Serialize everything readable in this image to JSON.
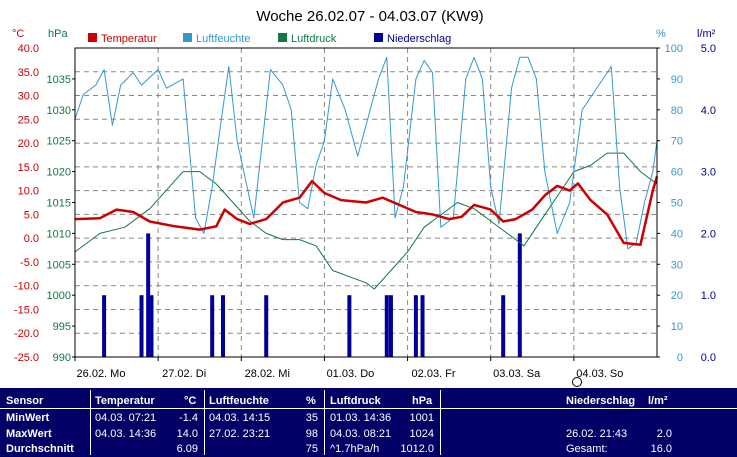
{
  "chart_data": {
    "type": "line",
    "title": "Woche 26.02.07 - 04.03.07 (KW9)",
    "unit_temp": "°C",
    "unit_press": "hPa",
    "unit_hum": "%",
    "unit_rain": "l/m²",
    "legend": [
      "Temperatur",
      "Luftfeuchte",
      "Luftdruck",
      "Niederschlag"
    ],
    "colors": {
      "temperatur": "#cc0000",
      "luftfeuchte": "#3399cc",
      "luftdruck": "#117744",
      "niederschlag": "#000099",
      "temp_axis": "#cc0000",
      "press_axis": "#117744",
      "hum_axis": "#3399cc",
      "rain_axis": "#000099"
    },
    "x_range": [
      0,
      7
    ],
    "day_labels": [
      "26.02.  Mo",
      "27.02.  Di",
      "28.02.  Mi",
      "01.03.  Do",
      "02.03.  Fr",
      "03.03.  Sa",
      "04.03.  So"
    ],
    "temp_ticks": [
      "40.0",
      "35.0",
      "30.0",
      "25.0",
      "20.0",
      "15.0",
      "10.0",
      "5.0",
      "0.0",
      "-5.0",
      "-10.0",
      "-15.0",
      "-20.0",
      "-25.0"
    ],
    "press_ticks": [
      "1035",
      "1030",
      "1025",
      "1020",
      "1015",
      "1010",
      "1005",
      "1000",
      "995",
      "990"
    ],
    "hum_ticks": [
      "100",
      "90",
      "80",
      "70",
      "60",
      "50",
      "40",
      "30",
      "20",
      "10",
      "0"
    ],
    "rain_ticks": [
      "5.0",
      "4.0",
      "3.0",
      "2.0",
      "1.0",
      "0.0"
    ],
    "temp_range": [
      -25,
      40
    ],
    "press_range": [
      990,
      1040
    ],
    "hum_range": [
      0,
      100
    ],
    "rain_range": [
      0,
      5
    ],
    "temperatur": [
      [
        0,
        4
      ],
      [
        0.3,
        4.2
      ],
      [
        0.5,
        6
      ],
      [
        0.7,
        5.5
      ],
      [
        0.9,
        3.5
      ],
      [
        1.2,
        2.5
      ],
      [
        1.5,
        1.8
      ],
      [
        1.7,
        2.5
      ],
      [
        1.8,
        6
      ],
      [
        1.95,
        4
      ],
      [
        2.1,
        3
      ],
      [
        2.3,
        4
      ],
      [
        2.5,
        7.5
      ],
      [
        2.7,
        8.5
      ],
      [
        2.85,
        12
      ],
      [
        3.0,
        9.5
      ],
      [
        3.2,
        8
      ],
      [
        3.5,
        7.5
      ],
      [
        3.7,
        8.5
      ],
      [
        3.9,
        7
      ],
      [
        4.1,
        5.5
      ],
      [
        4.3,
        5
      ],
      [
        4.5,
        4
      ],
      [
        4.65,
        4.5
      ],
      [
        4.8,
        7
      ],
      [
        5.0,
        6
      ],
      [
        5.15,
        3.5
      ],
      [
        5.3,
        4
      ],
      [
        5.5,
        6
      ],
      [
        5.65,
        9
      ],
      [
        5.8,
        11
      ],
      [
        5.95,
        10
      ],
      [
        6.05,
        11.5
      ],
      [
        6.2,
        8
      ],
      [
        6.4,
        5
      ],
      [
        6.6,
        -1
      ],
      [
        6.8,
        -1.4
      ],
      [
        6.95,
        10
      ],
      [
        7.0,
        13
      ]
    ],
    "luftfeuchte": [
      [
        0,
        77
      ],
      [
        0.1,
        85
      ],
      [
        0.25,
        88
      ],
      [
        0.35,
        93
      ],
      [
        0.45,
        75
      ],
      [
        0.55,
        88
      ],
      [
        0.7,
        92
      ],
      [
        0.8,
        88
      ],
      [
        1.0,
        93
      ],
      [
        1.1,
        87
      ],
      [
        1.3,
        90
      ],
      [
        1.45,
        45
      ],
      [
        1.55,
        40
      ],
      [
        1.65,
        55
      ],
      [
        1.75,
        75
      ],
      [
        1.85,
        94
      ],
      [
        1.95,
        70
      ],
      [
        2.15,
        45
      ],
      [
        2.35,
        93
      ],
      [
        2.5,
        88
      ],
      [
        2.6,
        80
      ],
      [
        2.7,
        50
      ],
      [
        2.8,
        48
      ],
      [
        2.9,
        62
      ],
      [
        3.0,
        70
      ],
      [
        3.1,
        90
      ],
      [
        3.25,
        80
      ],
      [
        3.4,
        65
      ],
      [
        3.55,
        80
      ],
      [
        3.65,
        90
      ],
      [
        3.75,
        97
      ],
      [
        3.85,
        45
      ],
      [
        3.95,
        55
      ],
      [
        4.1,
        90
      ],
      [
        4.2,
        96
      ],
      [
        4.3,
        92
      ],
      [
        4.4,
        42
      ],
      [
        4.55,
        45
      ],
      [
        4.7,
        90
      ],
      [
        4.8,
        97
      ],
      [
        4.9,
        90
      ],
      [
        5.0,
        55
      ],
      [
        5.1,
        43
      ],
      [
        5.25,
        87
      ],
      [
        5.35,
        97
      ],
      [
        5.45,
        97
      ],
      [
        5.55,
        90
      ],
      [
        5.65,
        60
      ],
      [
        5.8,
        40
      ],
      [
        5.95,
        50
      ],
      [
        6.1,
        80
      ],
      [
        6.3,
        88
      ],
      [
        6.45,
        94
      ],
      [
        6.55,
        55
      ],
      [
        6.65,
        35
      ],
      [
        6.75,
        37
      ],
      [
        6.85,
        50
      ],
      [
        6.95,
        60
      ],
      [
        7.0,
        70
      ]
    ],
    "luftdruck": [
      [
        0,
        1007
      ],
      [
        0.3,
        1010
      ],
      [
        0.6,
        1011
      ],
      [
        0.9,
        1014
      ],
      [
        1.1,
        1017
      ],
      [
        1.3,
        1020
      ],
      [
        1.5,
        1020
      ],
      [
        1.7,
        1018
      ],
      [
        1.9,
        1015
      ],
      [
        2.1,
        1012
      ],
      [
        2.3,
        1010
      ],
      [
        2.5,
        1009
      ],
      [
        2.7,
        1009
      ],
      [
        2.9,
        1008
      ],
      [
        3.1,
        1004
      ],
      [
        3.3,
        1003
      ],
      [
        3.5,
        1002
      ],
      [
        3.6,
        1001
      ],
      [
        3.8,
        1004
      ],
      [
        4.0,
        1007
      ],
      [
        4.2,
        1011
      ],
      [
        4.4,
        1013
      ],
      [
        4.6,
        1015
      ],
      [
        4.8,
        1014
      ],
      [
        5.0,
        1012
      ],
      [
        5.2,
        1010
      ],
      [
        5.4,
        1008
      ],
      [
        5.55,
        1011
      ],
      [
        5.7,
        1014
      ],
      [
        5.85,
        1017
      ],
      [
        6.0,
        1020
      ],
      [
        6.2,
        1021
      ],
      [
        6.4,
        1023
      ],
      [
        6.6,
        1023
      ],
      [
        6.8,
        1020
      ],
      [
        7.0,
        1018
      ]
    ],
    "niederschlag": [
      [
        0.35,
        1
      ],
      [
        0.8,
        1
      ],
      [
        0.88,
        2
      ],
      [
        0.92,
        1
      ],
      [
        1.65,
        1
      ],
      [
        1.78,
        1
      ],
      [
        2.3,
        1
      ],
      [
        3.3,
        1
      ],
      [
        3.75,
        1
      ],
      [
        3.8,
        1
      ],
      [
        4.1,
        1
      ],
      [
        4.18,
        1
      ],
      [
        5.15,
        1
      ],
      [
        5.35,
        2
      ]
    ],
    "stats": {
      "header": {
        "sensor": "Sensor",
        "temp": "Temperatur",
        "temp_unit": "°C",
        "hum": "Luftfeuchte",
        "hum_unit": "%",
        "press": "Luftdruck",
        "press_unit": "hPa",
        "rain": "Niederschlag",
        "rain_unit": "l/m²"
      },
      "rows": [
        {
          "label": "MinWert",
          "t_date": "04.03.  07:21",
          "t_val": "-1.4",
          "h_date": "04.03.  14:15",
          "h_val": "35",
          "p_date": "01.03.  14:36",
          "p_val": "1001",
          "r_date": "",
          "r_val": ""
        },
        {
          "label": "MaxWert",
          "t_date": "04.03.  14:36",
          "t_val": "14.0",
          "h_date": "27.02.  23:21",
          "h_val": "98",
          "p_date": "04.03.  08:21",
          "p_val": "1024",
          "r_date": "26.02.  21:43",
          "r_val": "2.0"
        },
        {
          "label": "Durchschnitt",
          "t_date": "",
          "t_val": "6.09",
          "h_date": "",
          "h_val": "75",
          "p_date": "^1.7hPa/h",
          "p_val": "1012.0",
          "r_date": "Gesamt:",
          "r_val": "16.0"
        }
      ]
    }
  }
}
